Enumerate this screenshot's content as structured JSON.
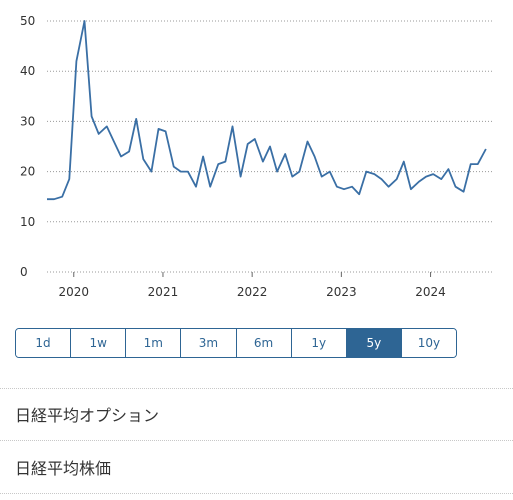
{
  "chart_data": {
    "type": "line",
    "title": "",
    "xlabel": "",
    "ylabel": "",
    "xlim": [
      2019.75,
      2024.75
    ],
    "ylim": [
      0,
      50
    ],
    "yticks": [
      0,
      10,
      20,
      30,
      40,
      50
    ],
    "xticks": [
      "2020",
      "2021",
      "2022",
      "2023",
      "2024"
    ],
    "grid": "horizontal dotted",
    "line_color": "#3a6fa5",
    "series": [
      {
        "x": [
          2019.75,
          2019.83,
          2019.92,
          2020.0,
          2020.08,
          2020.17,
          2020.25,
          2020.33,
          2020.42,
          2020.5,
          2020.58,
          2020.67,
          2020.75,
          2020.83,
          2020.92,
          2021.0,
          2021.08,
          2021.17,
          2021.25,
          2021.33,
          2021.42,
          2021.5,
          2021.58,
          2021.67,
          2021.75,
          2021.83,
          2021.92,
          2022.0,
          2022.08,
          2022.17,
          2022.25,
          2022.33,
          2022.42,
          2022.5,
          2022.58,
          2022.67,
          2022.75,
          2022.83,
          2022.92,
          2023.0,
          2023.08,
          2023.17,
          2023.25,
          2023.33,
          2023.42,
          2023.5,
          2023.58,
          2023.67,
          2023.75,
          2023.83,
          2023.92,
          2024.0,
          2024.08,
          2024.17,
          2024.25,
          2024.33,
          2024.42,
          2024.5,
          2024.58,
          2024.67
        ],
        "y": [
          14.5,
          14.5,
          15,
          18.5,
          42,
          50,
          31,
          27.5,
          29,
          26,
          23,
          24,
          30.5,
          22.5,
          20,
          28.5,
          28,
          21,
          20,
          20,
          17,
          23,
          17,
          21.5,
          22,
          29,
          19,
          25.5,
          26.5,
          22,
          25,
          20,
          23.5,
          19,
          20,
          26,
          23,
          19,
          20,
          17,
          16.5,
          17,
          15.5,
          20,
          19.5,
          18.5,
          17,
          18.5,
          22,
          16.5,
          18,
          19,
          19.5,
          18.5,
          20.5,
          17,
          16,
          21.5,
          21.5,
          24.5
        ]
      }
    ]
  },
  "range_buttons": [
    "1d",
    "1w",
    "1m",
    "3m",
    "6m",
    "1y",
    "5y",
    "10y"
  ],
  "active_range": "5y",
  "links": {
    "options": "日経平均オプション",
    "stock_prices": "日経平均株価"
  },
  "colors": {
    "accent": "#2e6594",
    "line": "#3a6fa5"
  }
}
